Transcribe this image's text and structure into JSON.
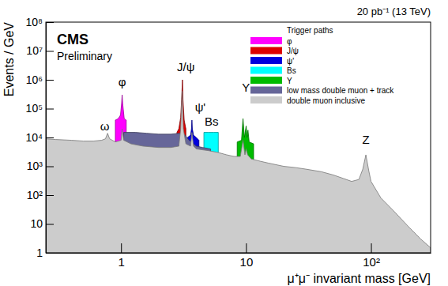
{
  "chart_data": {
    "type": "area",
    "title": "CMS",
    "subtitle": "Preliminary",
    "top_right_text": "20 pb⁻¹ (13 TeV)",
    "x_label": "μ⁺μ⁻ invariant mass [GeV]",
    "y_label": "Events / GeV",
    "log": true,
    "legend": "top-right",
    "legend_title": "Trigger paths",
    "xlim": [
      0.25,
      300
    ],
    "ylim": [
      1,
      100000000
    ],
    "xticks": [
      1,
      10,
      {
        "value": 100,
        "label": "10²"
      }
    ],
    "yticks": [
      1,
      10,
      {
        "value": 100,
        "label": "10²"
      },
      {
        "value": 1000,
        "label": "10³"
      },
      {
        "value": 10000,
        "label": "10⁴"
      },
      {
        "value": 100000,
        "label": "10⁵"
      },
      {
        "value": 1000000,
        "label": "10⁶"
      },
      {
        "value": 10000000,
        "label": "10⁷"
      },
      {
        "value": 100000000,
        "label": "10⁸"
      }
    ],
    "series": [
      {
        "name": "φ",
        "color": "#ff00ff",
        "x": [
          0.9,
          0.95,
          0.99,
          1.01,
          1.02,
          1.03,
          1.06,
          1.1
        ],
        "values": [
          40000,
          45000,
          60000,
          150000,
          300000,
          150000,
          45000,
          40000
        ]
      },
      {
        "name": "J/ψ",
        "color": "#dd0000",
        "x": [
          2.8,
          2.9,
          3.0,
          3.05,
          3.1,
          3.13,
          3.2,
          3.3
        ],
        "values": [
          15000,
          20000,
          50000,
          200000,
          1000000,
          200000,
          40000,
          20000
        ]
      },
      {
        "name": "ψ'",
        "color": "#0000dd",
        "x": [
          3.4,
          3.6,
          3.66,
          3.69,
          3.72,
          3.8,
          4.0,
          4.2
        ],
        "values": [
          10000,
          12000,
          20000,
          40000,
          20000,
          12000,
          10000,
          8000
        ]
      },
      {
        "name": "Bs",
        "color": "#00ffff",
        "x": [
          4.6,
          5,
          5.5,
          6
        ],
        "values": [
          15000,
          15000,
          15000,
          15000
        ]
      },
      {
        "name": "Υ",
        "color": "#00bb00",
        "x": [
          8.5,
          9.2,
          9.46,
          9.7,
          10.02,
          10.2,
          10.36,
          10.6,
          11.5
        ],
        "values": [
          7000,
          8000,
          45000,
          10000,
          25000,
          10000,
          18000,
          7000,
          6000
        ]
      },
      {
        "name": "low mass double muon + track",
        "color": "#666699",
        "x": [
          1.05,
          1.3,
          1.6,
          2,
          2.5,
          2.9,
          3.2,
          3.5,
          4,
          4.5,
          5.2
        ],
        "values": [
          15000,
          15000,
          14000,
          13000,
          13000,
          14000,
          13000,
          8000,
          5000,
          4500,
          4000
        ]
      },
      {
        "name": "double muon inclusive",
        "color": "#cccccc",
        "x": [
          0.25,
          0.3,
          0.4,
          0.5,
          0.6,
          0.7,
          0.75,
          0.78,
          0.81,
          0.9,
          1.0,
          1.02,
          1.05,
          1.2,
          1.5,
          2,
          2.5,
          2.9,
          3.0,
          3.08,
          3.15,
          3.3,
          3.6,
          3.69,
          3.8,
          4,
          5,
          6,
          7,
          8,
          9,
          9.46,
          9.8,
          10.02,
          10.3,
          11,
          13,
          15,
          20,
          25,
          30,
          40,
          50,
          60,
          70,
          80,
          86,
          91,
          96,
          100,
          110,
          120,
          150,
          200,
          250,
          300
        ],
        "values": [
          9000,
          8500,
          8000,
          7500,
          7500,
          8000,
          9000,
          14000,
          9000,
          7000,
          8000,
          20000,
          8000,
          6000,
          5000,
          4500,
          4500,
          5000,
          20000,
          400000,
          20000,
          6000,
          5000,
          15000,
          5000,
          4000,
          3500,
          3000,
          2500,
          2200,
          2200,
          8000,
          2500,
          4000,
          2500,
          1800,
          1500,
          1300,
          1000,
          900,
          800,
          650,
          500,
          380,
          300,
          350,
          800,
          2500,
          700,
          300,
          150,
          80,
          30,
          8,
          3,
          1.5
        ]
      }
    ],
    "annotations": [
      {
        "text": "ω",
        "x": 0.74,
        "y": 18000
      },
      {
        "text": "φ",
        "x": 1.02,
        "y": 600000
      },
      {
        "text": "J/ψ",
        "x": 3.3,
        "y": 2000000
      },
      {
        "text": "ψ'",
        "x": 4.3,
        "y": 80000
      },
      {
        "text": "Bs",
        "x": 5.3,
        "y": 25000
      },
      {
        "text": "Υ",
        "x": 10,
        "y": 400000
      },
      {
        "text": "Z",
        "x": 91,
        "y": 6000
      }
    ]
  }
}
